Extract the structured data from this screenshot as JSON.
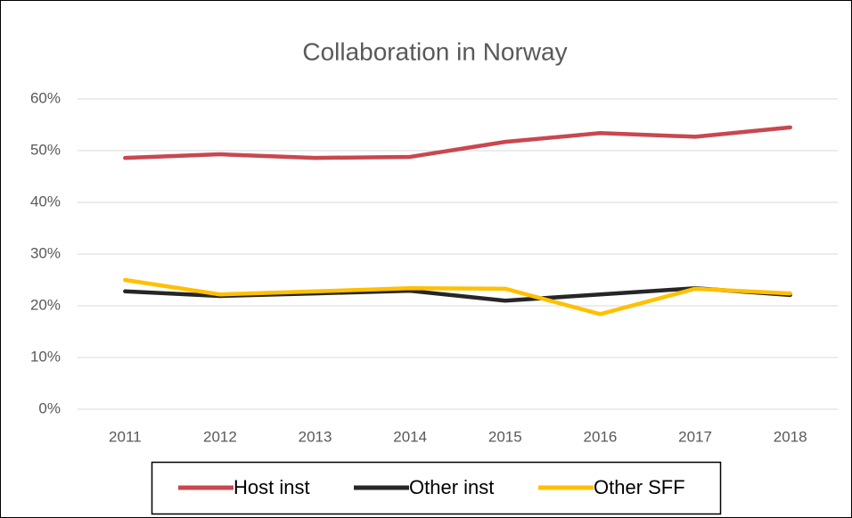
{
  "chart_data": {
    "type": "line",
    "title": "Collaboration in Norway",
    "categories": [
      "2011",
      "2012",
      "2013",
      "2014",
      "2015",
      "2016",
      "2017",
      "2018"
    ],
    "series": [
      {
        "name": "Host inst",
        "color": "#c9474f",
        "values": [
          48.6,
          49.3,
          48.6,
          48.8,
          51.7,
          53.4,
          52.7,
          54.5
        ]
      },
      {
        "name": "Other inst",
        "color": "#262626",
        "values": [
          22.8,
          21.9,
          22.4,
          22.9,
          21.0,
          22.2,
          23.4,
          22.1
        ]
      },
      {
        "name": "Other SFF",
        "color": "#ffc000",
        "values": [
          25.0,
          22.2,
          22.8,
          23.4,
          23.3,
          18.4,
          23.3,
          22.4
        ]
      }
    ],
    "ylim": [
      0,
      60
    ],
    "yticks": [
      {
        "value": 0,
        "label": "0%"
      },
      {
        "value": 10,
        "label": "10%"
      },
      {
        "value": 20,
        "label": "20%"
      },
      {
        "value": 30,
        "label": "30%"
      },
      {
        "value": 40,
        "label": "40%"
      },
      {
        "value": 50,
        "label": "50%"
      },
      {
        "value": 60,
        "label": "60%"
      }
    ],
    "grid": true,
    "legend": "bottom"
  }
}
